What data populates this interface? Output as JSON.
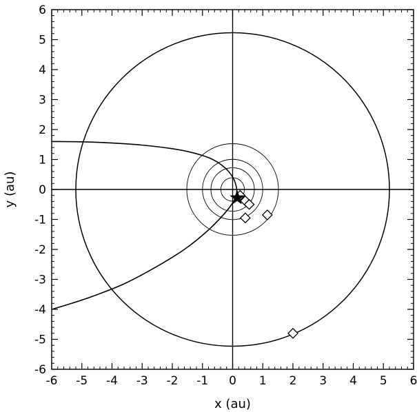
{
  "chart_data": {
    "type": "scatter",
    "xlabel": "x (au)",
    "ylabel": "y (au)",
    "xlim": [
      -6,
      6
    ],
    "ylim": [
      -6,
      6
    ],
    "x_ticks": [
      "-6",
      "-5",
      "-4",
      "-3",
      "-2",
      "-1",
      "0",
      "1",
      "2",
      "3",
      "4",
      "5",
      "6"
    ],
    "y_ticks": [
      "-6",
      "-5",
      "-4",
      "-3",
      "-2",
      "-1",
      "0",
      "1",
      "2",
      "3",
      "4",
      "5",
      "6"
    ],
    "grid": false,
    "legend": "none",
    "crosshair_lines": {
      "x": 0,
      "y": 0
    },
    "orbits": [
      {
        "center": [
          0,
          0
        ],
        "radius": 0.39
      },
      {
        "center": [
          0,
          0
        ],
        "radius": 0.72
      },
      {
        "center": [
          0,
          0
        ],
        "radius": 1.0
      },
      {
        "center": [
          0,
          0
        ],
        "radius": 1.52
      },
      {
        "center": [
          0,
          0
        ],
        "radius": 5.2
      }
    ],
    "trajectory": [
      [
        -6.0,
        1.6
      ],
      [
        -5.0,
        1.59
      ],
      [
        -4.0,
        1.55
      ],
      [
        -3.0,
        1.48
      ],
      [
        -2.0,
        1.36
      ],
      [
        -1.3,
        1.22
      ],
      [
        -0.7,
        1.02
      ],
      [
        -0.25,
        0.72
      ],
      [
        0.02,
        0.38
      ],
      [
        0.13,
        0.05
      ],
      [
        0.12,
        -0.2
      ],
      [
        0.02,
        -0.42
      ],
      [
        -0.25,
        -0.78
      ],
      [
        -0.8,
        -1.35
      ],
      [
        -1.6,
        -2.0
      ],
      [
        -2.6,
        -2.62
      ],
      [
        -3.6,
        -3.15
      ],
      [
        -4.6,
        -3.55
      ],
      [
        -5.4,
        -3.82
      ],
      [
        -6.0,
        -4.0
      ]
    ],
    "star": [
      0.15,
      -0.28
    ],
    "points": [
      {
        "x": 0.25,
        "y": -0.2
      },
      {
        "x": 0.42,
        "y": -0.38
      },
      {
        "x": 0.55,
        "y": -0.5
      },
      {
        "x": 0.42,
        "y": -0.95
      },
      {
        "x": 1.15,
        "y": -0.85
      },
      {
        "x": 2.0,
        "y": -4.8
      }
    ]
  }
}
